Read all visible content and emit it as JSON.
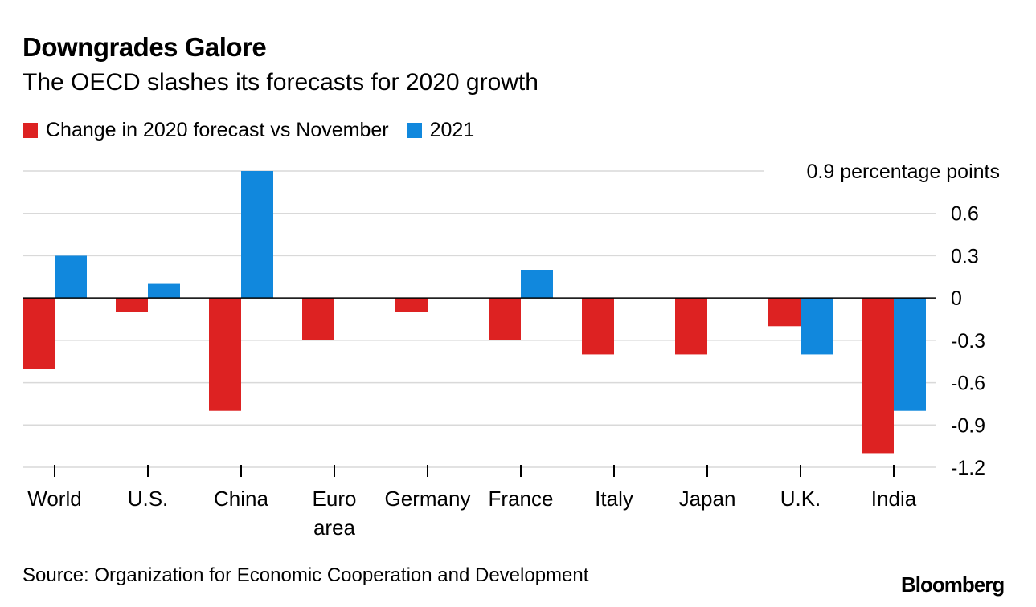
{
  "header": {
    "title": "Downgrades Galore",
    "subtitle": "The OECD slashes its forecasts for 2020 growth"
  },
  "footer": {
    "source": "Source: Organization for Economic Cooperation and Development",
    "logo": "Bloomberg"
  },
  "colors": {
    "series_2020": "#dd2222",
    "series_2021": "#1188dd",
    "grid": "#d9d9d9",
    "axis": "#000000"
  },
  "chart_data": {
    "type": "bar",
    "categories": [
      [
        "World"
      ],
      [
        "U.S."
      ],
      [
        "China"
      ],
      [
        "Euro",
        "area"
      ],
      [
        "Germany"
      ],
      [
        "France"
      ],
      [
        "Italy"
      ],
      [
        "Japan"
      ],
      [
        "U.K."
      ],
      [
        "India"
      ]
    ],
    "series": [
      {
        "name": "Change in 2020 forecast vs November",
        "color": "#dd2222",
        "values": [
          -0.5,
          -0.1,
          -0.8,
          -0.3,
          -0.1,
          -0.3,
          -0.4,
          -0.4,
          -0.2,
          -1.1
        ]
      },
      {
        "name": "2021",
        "color": "#1188dd",
        "values": [
          0.3,
          0.1,
          0.9,
          0.0,
          0.0,
          0.2,
          0.0,
          0.0,
          -0.4,
          -0.8
        ]
      }
    ],
    "yticks": [
      0.9,
      0.6,
      0.3,
      0,
      -0.3,
      -0.6,
      -0.9,
      -1.2
    ],
    "ytick_labels": [
      "0.9 percentage points",
      "0.6",
      "0.3",
      "0",
      "-0.3",
      "-0.6",
      "-0.9",
      "-1.2"
    ],
    "ylim": [
      -1.2,
      0.9
    ],
    "grid": true,
    "legend_position": "top-left"
  }
}
